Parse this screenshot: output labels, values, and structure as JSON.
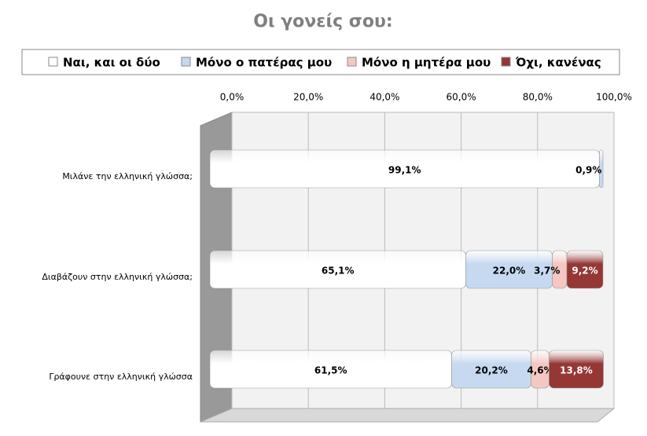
{
  "chart_data": {
    "type": "stacked-bar-3d",
    "title": "Οι γονείς σου:",
    "categories": [
      "Μιλάνε την ελληνική γλώσσα;",
      "Διαβάζουν στην ελληνική γλώσσα;",
      "Γράφουνε στην ελληνική γλώσσα"
    ],
    "series": [
      {
        "name": "Ναι, και οι δύο",
        "color": "#ffffff",
        "values": [
          99.1,
          65.1,
          61.5
        ],
        "value_labels": [
          "99,1%",
          "65,1%",
          "61,5%"
        ]
      },
      {
        "name": "Μόνο ο πατέρας μου",
        "color": "#c6d9f1",
        "values": [
          0.9,
          22.0,
          20.2
        ],
        "value_labels": [
          "0,9%",
          "22,0%",
          "20,2%"
        ]
      },
      {
        "name": "Μόνο η μητέρα μου",
        "color": "#f4c7c3",
        "values": [
          0,
          3.7,
          4.6
        ],
        "value_labels": [
          null,
          "3,7%",
          "4,6%"
        ]
      },
      {
        "name": "Όχι, κανένας",
        "color": "#953735",
        "values": [
          0,
          9.2,
          13.8
        ],
        "value_labels": [
          null,
          "9,2%",
          "13,8%"
        ]
      }
    ],
    "xlim": [
      0,
      100
    ],
    "xticks": [
      {
        "value": 0,
        "label": "0,0%"
      },
      {
        "value": 20,
        "label": "20,0%"
      },
      {
        "value": 40,
        "label": "40,0%"
      },
      {
        "value": 60,
        "label": "60,0%"
      },
      {
        "value": 80,
        "label": "80,0%"
      },
      {
        "value": 100,
        "label": "100,0%"
      }
    ],
    "grid": true
  }
}
